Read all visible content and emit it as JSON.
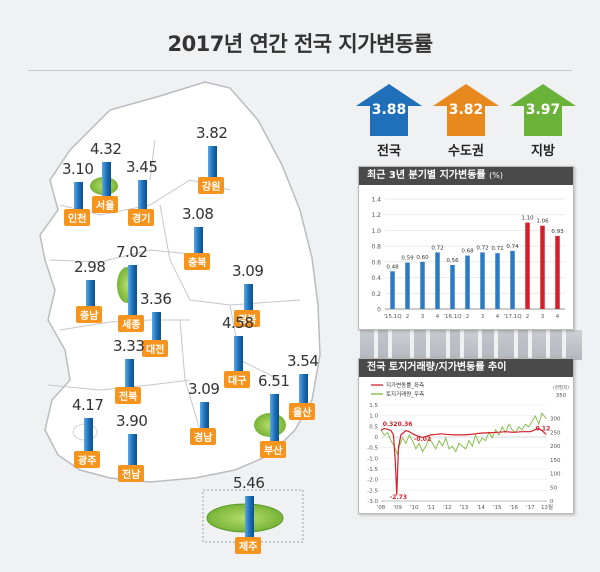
{
  "title": "2017년 연간 전국 지가변동률",
  "colors": {
    "nation": "#1f6fb9",
    "capital": "#e8891e",
    "local": "#6bb23a",
    "bar_blue": "#2b7bc4",
    "bar_red": "#d41f2a",
    "tag_orange": "#f7941d"
  },
  "summary": [
    {
      "label": "전국",
      "value": "3.88",
      "color": "#1f6fb9"
    },
    {
      "label": "수도권",
      "value": "3.82",
      "color": "#e8891e"
    },
    {
      "label": "지방",
      "value": "3.97",
      "color": "#6bb23a"
    }
  ],
  "map": {
    "regions": [
      {
        "name": "인천",
        "value": "3.10"
      },
      {
        "name": "서울",
        "value": "4.32"
      },
      {
        "name": "경기",
        "value": "3.45"
      },
      {
        "name": "강원",
        "value": "3.82"
      },
      {
        "name": "충북",
        "value": "3.08"
      },
      {
        "name": "세종",
        "value": "7.02"
      },
      {
        "name": "대전",
        "value": "3.36"
      },
      {
        "name": "충남",
        "value": "2.98"
      },
      {
        "name": "경북",
        "value": "3.09"
      },
      {
        "name": "대구",
        "value": "4.58"
      },
      {
        "name": "전북",
        "value": "3.33"
      },
      {
        "name": "울산",
        "value": "3.54"
      },
      {
        "name": "부산",
        "value": "6.51"
      },
      {
        "name": "경남",
        "value": "3.09"
      },
      {
        "name": "광주",
        "value": "4.17"
      },
      {
        "name": "전남",
        "value": "3.90"
      },
      {
        "name": "제주",
        "value": "5.46"
      }
    ]
  },
  "chart_data": [
    {
      "type": "bar",
      "title": "최근 3년 분기별 지가변동률",
      "unit": "(%)",
      "categories": [
        "'15.1Q",
        "2",
        "3",
        "4",
        "'16.1Q",
        "2",
        "3",
        "4",
        "'17.1Q",
        "2",
        "3",
        "4"
      ],
      "values": [
        0.48,
        0.59,
        0.6,
        0.72,
        0.56,
        0.68,
        0.72,
        0.71,
        0.74,
        1.1,
        1.06,
        0.93
      ],
      "value_labels": [
        "0.48",
        "0.59",
        "0.60",
        "0.72",
        "0.56",
        "0.68",
        "0.72",
        "0.71",
        "0.74",
        "1.10",
        "1.06",
        "0.93"
      ],
      "highlight_from_index": 9,
      "ylim": [
        0,
        1.4
      ],
      "yticks": [
        "0",
        "0.2",
        "0.4",
        "0.6",
        "0.8",
        "1.0",
        "1.2",
        "1.4"
      ],
      "grid": true
    },
    {
      "type": "line",
      "title": "전국 토지거래량/지가변동률 추이",
      "legend": [
        "지가변동률_좌측",
        "토지거래량_우측"
      ],
      "right_unit": [
        "(천필지)",
        "350"
      ],
      "x_ticks": [
        "'08",
        "'09",
        "'10",
        "'11",
        "'12",
        "'13",
        "'14",
        "'15",
        "'16",
        "'17",
        "12월"
      ],
      "left_ticks": [
        "1.5",
        "1.0",
        "0.5",
        "0",
        "-0.5",
        "-1.0",
        "-1.5",
        "-2.0",
        "-2.5",
        "-3.0"
      ],
      "right_ticks": [
        "300",
        "250",
        "200",
        "150",
        "100",
        "50",
        "0"
      ],
      "ylim_left": [
        -3.0,
        1.5
      ],
      "ylim_right": [
        0,
        350
      ],
      "annotations": [
        "0.32",
        "0.36",
        "-0.02",
        "-2.73",
        "0.12"
      ],
      "series": [
        {
          "name": "지가변동률_좌측",
          "color": "#d41f2a",
          "x": [
            2008.0,
            2008.2,
            2008.4,
            2008.6,
            2008.75,
            2008.85,
            2008.95,
            2009.05,
            2009.2,
            2009.35,
            2009.5,
            2009.7,
            2009.9,
            2010.2,
            2010.5,
            2010.8,
            2011.0,
            2011.3,
            2011.6,
            2012.0,
            2012.5,
            2013.0,
            2013.5,
            2014.0,
            2014.5,
            2015.0,
            2015.5,
            2016.0,
            2016.5,
            2017.0,
            2017.3,
            2017.5,
            2017.7,
            2017.95
          ],
          "y": [
            0.32,
            0.4,
            0.36,
            0.3,
            0.1,
            -1.0,
            -2.73,
            -0.5,
            0.1,
            0.2,
            0.3,
            0.25,
            0.15,
            0.05,
            -0.02,
            0.05,
            0.1,
            0.12,
            0.15,
            0.12,
            0.1,
            0.1,
            0.13,
            0.18,
            0.2,
            0.22,
            0.25,
            0.22,
            0.25,
            0.25,
            0.35,
            0.4,
            0.3,
            0.12
          ]
        },
        {
          "name": "토지거래량_우측",
          "color": "#7cba3d",
          "x": [
            2008.0,
            2008.2,
            2008.4,
            2008.6,
            2008.8,
            2009.0,
            2009.1,
            2009.3,
            2009.5,
            2009.7,
            2009.9,
            2010.1,
            2010.3,
            2010.5,
            2010.7,
            2010.9,
            2011.1,
            2011.3,
            2011.5,
            2011.7,
            2011.9,
            2012.1,
            2012.3,
            2012.5,
            2012.7,
            2012.9,
            2013.1,
            2013.3,
            2013.5,
            2013.7,
            2013.9,
            2014.1,
            2014.3,
            2014.5,
            2014.7,
            2014.9,
            2015.1,
            2015.3,
            2015.5,
            2015.7,
            2015.9,
            2016.1,
            2016.3,
            2016.5,
            2016.7,
            2016.9,
            2017.1,
            2017.3,
            2017.5,
            2017.7,
            2017.95
          ],
          "y": [
            260,
            240,
            250,
            220,
            200,
            170,
            200,
            230,
            210,
            240,
            220,
            190,
            210,
            180,
            200,
            230,
            210,
            190,
            220,
            200,
            230,
            190,
            200,
            180,
            210,
            200,
            190,
            220,
            200,
            240,
            210,
            230,
            220,
            250,
            230,
            260,
            240,
            270,
            250,
            280,
            260,
            250,
            270,
            260,
            280,
            270,
            290,
            310,
            280,
            320,
            300
          ]
        }
      ]
    }
  ]
}
